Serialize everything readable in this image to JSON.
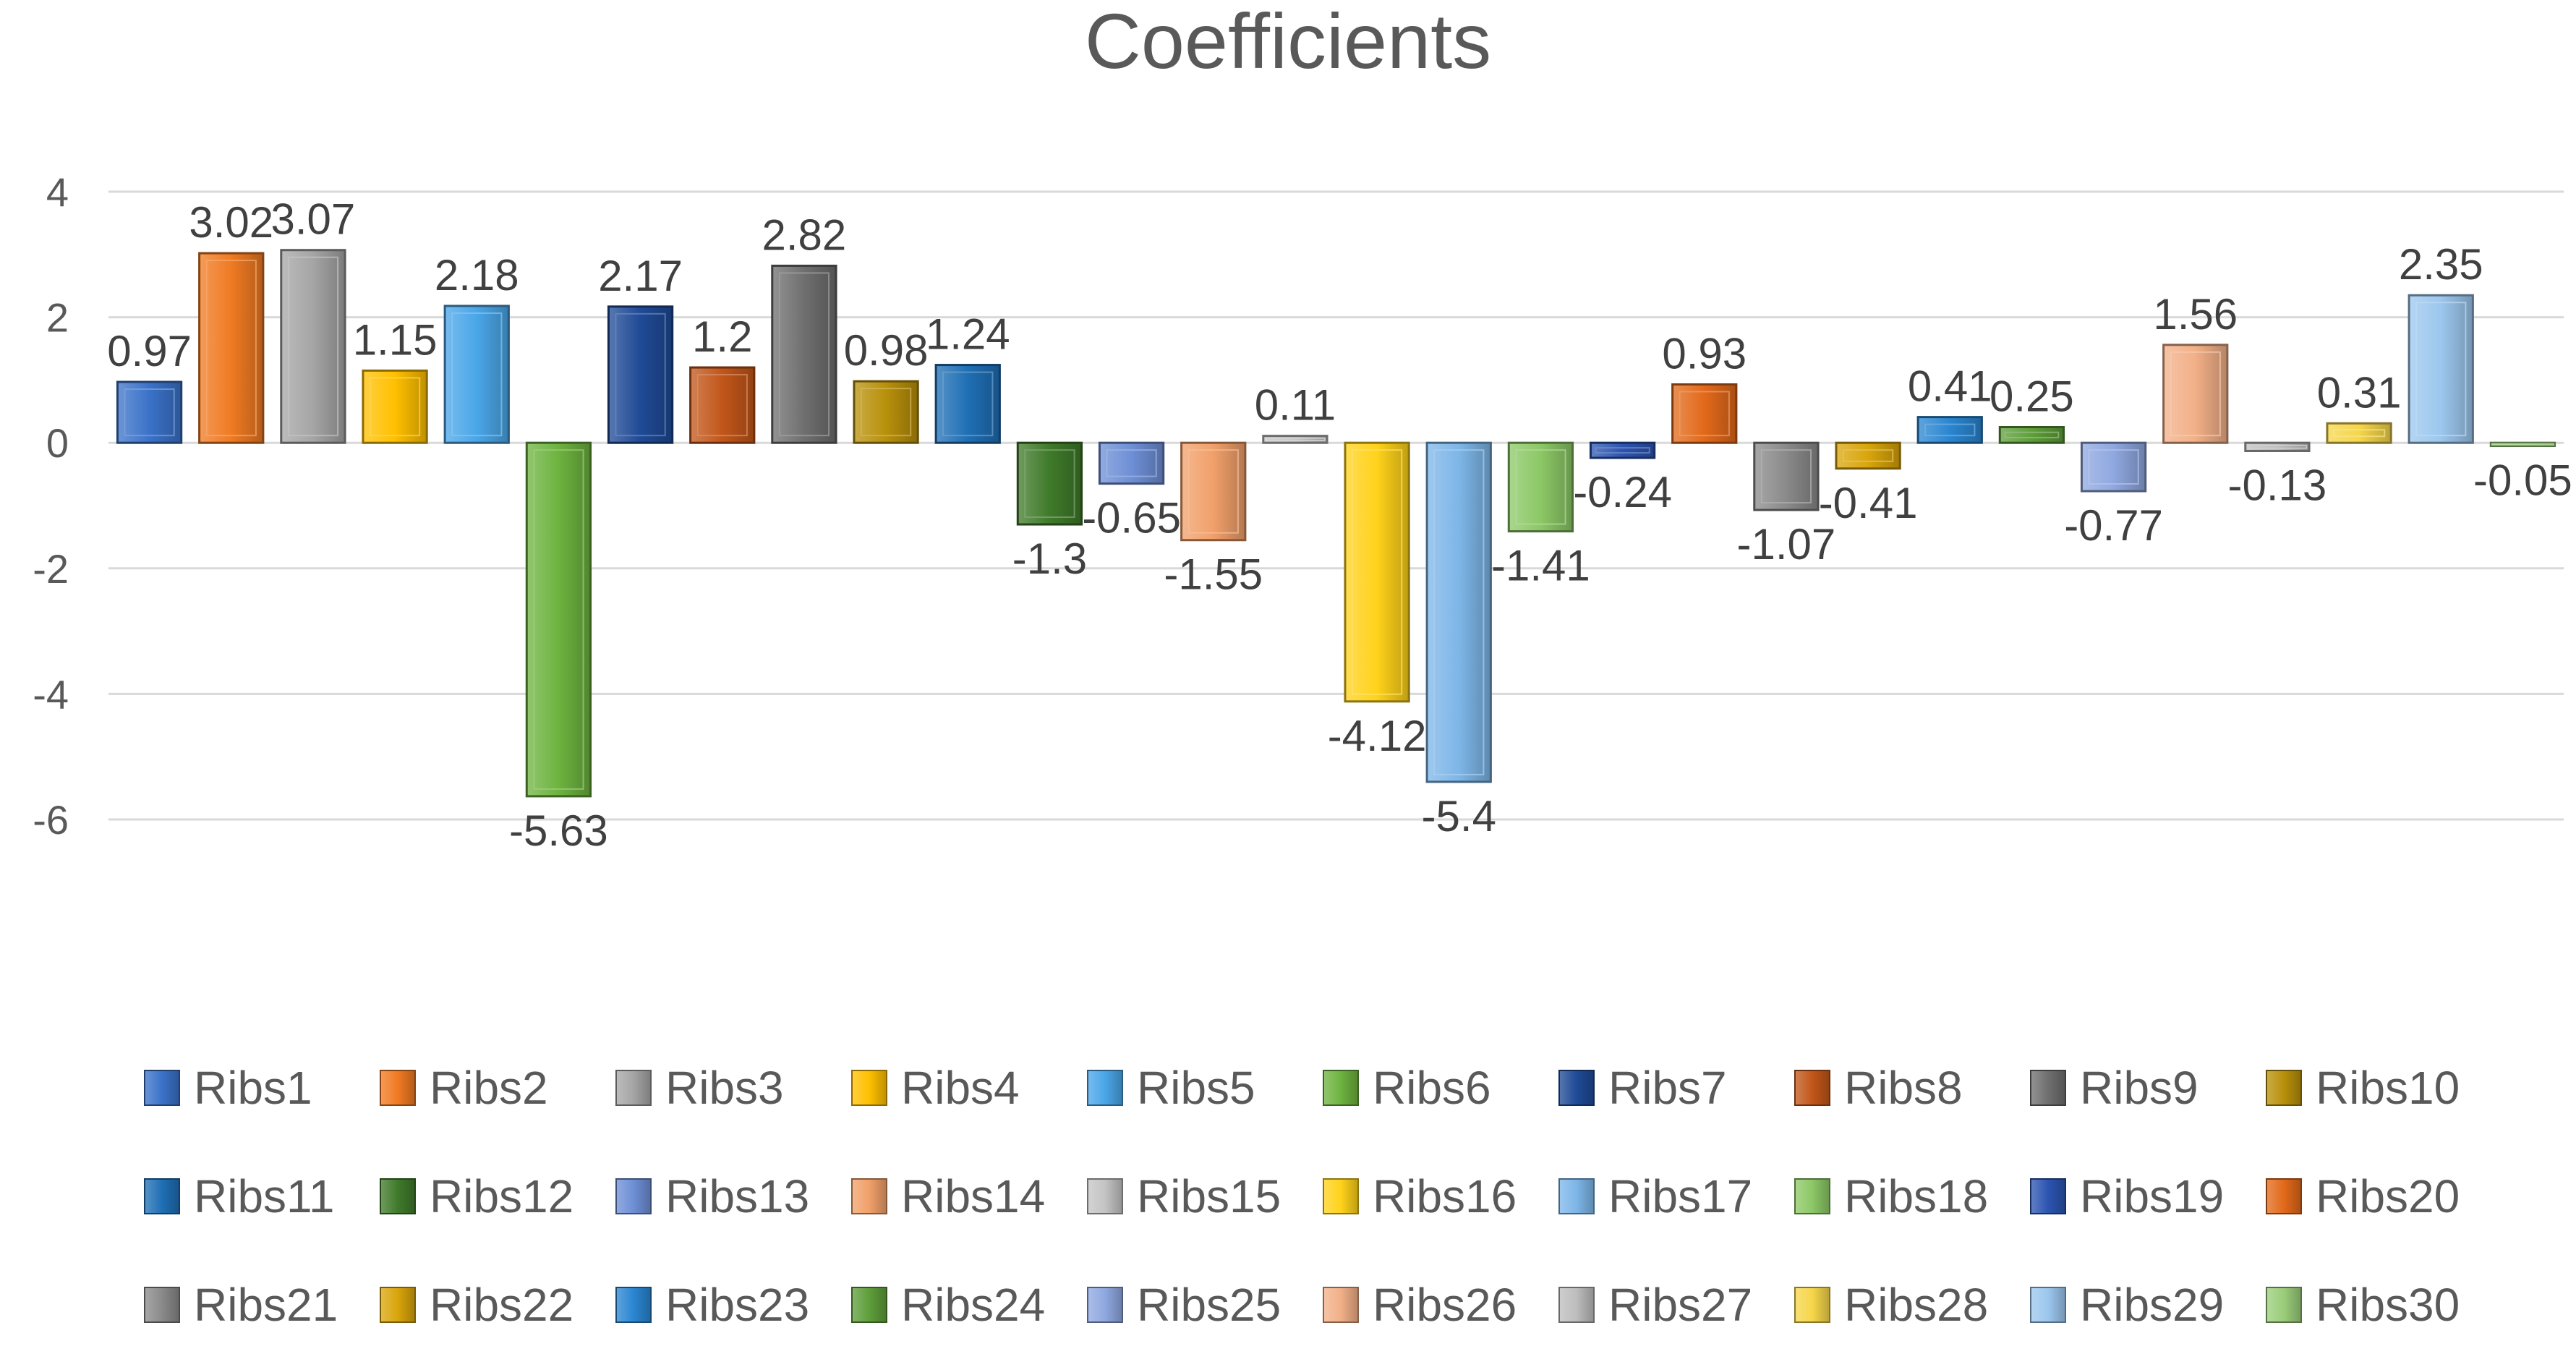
{
  "chart_data": {
    "type": "bar",
    "title": "Coefficients",
    "xlabel": "",
    "ylabel": "",
    "ylim": [
      -6,
      4
    ],
    "yticks": [
      4,
      2,
      0,
      -2,
      -4,
      -6
    ],
    "grid": true,
    "legend_position": "bottom",
    "categories": [
      "Ribs1",
      "Ribs2",
      "Ribs3",
      "Ribs4",
      "Ribs5",
      "Ribs6",
      "Ribs7",
      "Ribs8",
      "Ribs9",
      "Ribs10",
      "Ribs11",
      "Ribs12",
      "Ribs13",
      "Ribs14",
      "Ribs15",
      "Ribs16",
      "Ribs17",
      "Ribs18",
      "Ribs19",
      "Ribs20",
      "Ribs21",
      "Ribs22",
      "Ribs23",
      "Ribs24",
      "Ribs25",
      "Ribs26",
      "Ribs27",
      "Ribs28",
      "Ribs29",
      "Ribs30"
    ],
    "values": [
      0.97,
      3.02,
      3.07,
      1.15,
      2.18,
      -5.63,
      2.17,
      1.2,
      2.82,
      0.98,
      1.24,
      -1.3,
      -0.65,
      -1.55,
      0.11,
      -4.12,
      -5.4,
      -1.41,
      -0.24,
      0.93,
      -1.07,
      -0.41,
      0.41,
      0.25,
      -0.77,
      1.56,
      -0.13,
      0.31,
      2.35,
      -0.05
    ],
    "data_labels": [
      "0.97",
      "3.02",
      "3.07",
      "1.15",
      "2.18",
      "-5.63",
      "2.17",
      "1.2",
      "2.82",
      "0.98",
      "1.24",
      "-1.3",
      "-0.65",
      "-1.55",
      "0.11",
      "-4.12",
      "-5.4",
      "-1.41",
      "-0.24",
      "0.93",
      "-1.07",
      "-0.41",
      "0.41",
      "0.25",
      "-0.77",
      "1.56",
      "-0.13",
      "0.31",
      "2.35",
      "-0.05"
    ],
    "colors": [
      "#3B72C9",
      "#F07A22",
      "#A5A5A5",
      "#FFC000",
      "#4AA6E8",
      "#6DB33F",
      "#1F4A96",
      "#C2561A",
      "#6F6F6F",
      "#B8900A",
      "#1F6FB5",
      "#3F7A2A",
      "#6E8FD6",
      "#F1A06A",
      "#C4C4C4",
      "#FFD21A",
      "#7DB6E8",
      "#8CC866",
      "#2C54B0",
      "#E2691A",
      "#8A8A8A",
      "#D9A50B",
      "#2A86D1",
      "#5E9E3A",
      "#8FA8E0",
      "#F2B088",
      "#BDBDBD",
      "#F6D64A",
      "#9CC7EE",
      "#9ACD7A"
    ]
  }
}
